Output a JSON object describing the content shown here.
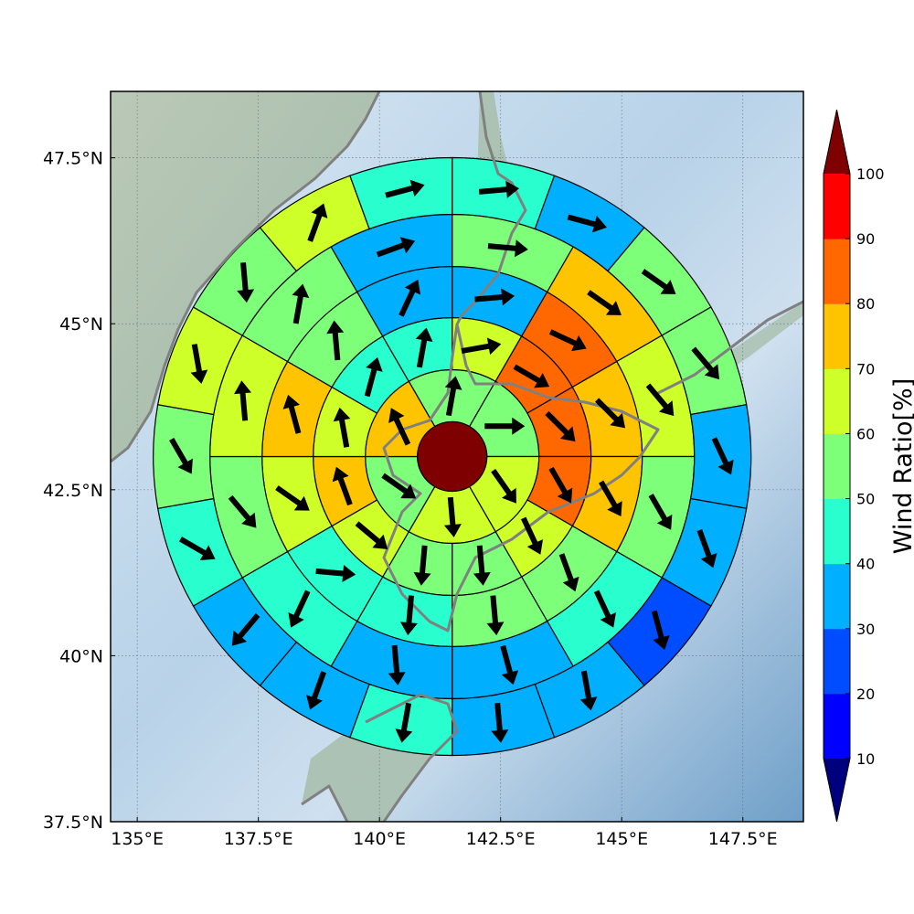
{
  "map": {
    "lon_range": [
      134.45,
      148.75
    ],
    "lat_range": [
      37.5,
      48.5
    ],
    "lon_ticks": [
      {
        "value": 135,
        "label": "135°E"
      },
      {
        "value": 137.5,
        "label": "137.5°E"
      },
      {
        "value": 140,
        "label": "140°E"
      },
      {
        "value": 142.5,
        "label": "142.5°E"
      },
      {
        "value": 145,
        "label": "145°E"
      },
      {
        "value": 147.5,
        "label": "147.5°E"
      }
    ],
    "lat_ticks": [
      {
        "value": 37.5,
        "label": "37.5°N"
      },
      {
        "value": 40,
        "label": "40°N"
      },
      {
        "value": 42.5,
        "label": "42.5°N"
      },
      {
        "value": 45,
        "label": "45°N"
      },
      {
        "value": 47.5,
        "label": "47.5°N"
      }
    ],
    "gridlines": true,
    "basemap": "shaded-relief",
    "coastline_color": "#808080",
    "center": {
      "lon": 141.5,
      "lat": 43.0,
      "value": 100
    }
  },
  "colorbar": {
    "label": "Wind Ratio[%]",
    "ticks": [
      "10",
      "20",
      "30",
      "40",
      "50",
      "60",
      "70",
      "80",
      "90",
      "100"
    ],
    "bins": [
      {
        "min": 0,
        "max": 10,
        "color": "#00007f"
      },
      {
        "min": 10,
        "max": 20,
        "color": "#0000ff"
      },
      {
        "min": 20,
        "max": 30,
        "color": "#004cff"
      },
      {
        "min": 30,
        "max": 40,
        "color": "#00b0ff"
      },
      {
        "min": 40,
        "max": 50,
        "color": "#29ffce"
      },
      {
        "min": 50,
        "max": 60,
        "color": "#7dff7a"
      },
      {
        "min": 60,
        "max": 70,
        "color": "#ceff29"
      },
      {
        "min": 70,
        "max": 80,
        "color": "#ffc400"
      },
      {
        "min": 80,
        "max": 90,
        "color": "#ff6800"
      },
      {
        "min": 90,
        "max": 100,
        "color": "#ff0000"
      },
      {
        "min": 100,
        "max": 110,
        "color": "#7f0000"
      }
    ],
    "extend": "both"
  },
  "chart_data": {
    "type": "heatmap",
    "projection": "polar-sectors",
    "sector_convention": "angle in degrees clockwise from north, sector centered on angle",
    "wind_convention": "direction in degrees clockwise from north the arrow points toward",
    "rings": [
      {
        "ring": 1,
        "sectors": [
          {
            "angle": 0,
            "value": 55,
            "wind_dir": 10
          },
          {
            "angle": 60,
            "value": 55,
            "wind_dir": 90
          },
          {
            "angle": 120,
            "value": 65,
            "wind_dir": 145
          },
          {
            "angle": 180,
            "value": 65,
            "wind_dir": 175
          },
          {
            "angle": 240,
            "value": 55,
            "wind_dir": 125
          },
          {
            "angle": 300,
            "value": 75,
            "wind_dir": 335
          }
        ]
      },
      {
        "ring": 2,
        "sectors": [
          {
            "angle": 15,
            "value": 65,
            "wind_dir": 80
          },
          {
            "angle": 45,
            "value": 85,
            "wind_dir": 120
          },
          {
            "angle": 75,
            "value": 85,
            "wind_dir": 135
          },
          {
            "angle": 105,
            "value": 85,
            "wind_dir": 150
          },
          {
            "angle": 135,
            "value": 65,
            "wind_dir": 155
          },
          {
            "angle": 165,
            "value": 55,
            "wind_dir": 175
          },
          {
            "angle": 195,
            "value": 55,
            "wind_dir": 185
          },
          {
            "angle": 225,
            "value": 65,
            "wind_dir": 130
          },
          {
            "angle": 255,
            "value": 75,
            "wind_dir": 340
          },
          {
            "angle": 285,
            "value": 65,
            "wind_dir": 350
          },
          {
            "angle": 315,
            "value": 45,
            "wind_dir": 15
          },
          {
            "angle": 345,
            "value": 45,
            "wind_dir": 10
          }
        ]
      },
      {
        "ring": 3,
        "sectors": [
          {
            "angle": 15,
            "value": 35,
            "wind_dir": 85
          },
          {
            "angle": 45,
            "value": 85,
            "wind_dir": 115
          },
          {
            "angle": 75,
            "value": 75,
            "wind_dir": 135
          },
          {
            "angle": 105,
            "value": 75,
            "wind_dir": 150
          },
          {
            "angle": 135,
            "value": 55,
            "wind_dir": 160
          },
          {
            "angle": 165,
            "value": 55,
            "wind_dir": 175
          },
          {
            "angle": 195,
            "value": 45,
            "wind_dir": 185
          },
          {
            "angle": 225,
            "value": 45,
            "wind_dir": 95
          },
          {
            "angle": 255,
            "value": 65,
            "wind_dir": 125
          },
          {
            "angle": 285,
            "value": 75,
            "wind_dir": 345
          },
          {
            "angle": 315,
            "value": 55,
            "wind_dir": 355
          },
          {
            "angle": 345,
            "value": 35,
            "wind_dir": 25
          }
        ]
      },
      {
        "ring": 4,
        "sectors": [
          {
            "angle": 15,
            "value": 55,
            "wind_dir": 95
          },
          {
            "angle": 45,
            "value": 75,
            "wind_dir": 125
          },
          {
            "angle": 75,
            "value": 65,
            "wind_dir": 140
          },
          {
            "angle": 105,
            "value": 55,
            "wind_dir": 150
          },
          {
            "angle": 135,
            "value": 45,
            "wind_dir": 155
          },
          {
            "angle": 165,
            "value": 35,
            "wind_dir": 165
          },
          {
            "angle": 195,
            "value": 35,
            "wind_dir": 175
          },
          {
            "angle": 225,
            "value": 45,
            "wind_dir": 205
          },
          {
            "angle": 255,
            "value": 55,
            "wind_dir": 140
          },
          {
            "angle": 285,
            "value": 65,
            "wind_dir": 355
          },
          {
            "angle": 315,
            "value": 55,
            "wind_dir": 10
          },
          {
            "angle": 345,
            "value": 35,
            "wind_dir": 70
          }
        ]
      },
      {
        "ring": 5,
        "sectors": [
          {
            "angle": 10,
            "value": 45,
            "wind_dir": 85
          },
          {
            "angle": 30,
            "value": 35,
            "wind_dir": 105
          },
          {
            "angle": 50,
            "value": 55,
            "wind_dir": 125
          },
          {
            "angle": 70,
            "value": 55,
            "wind_dir": 140
          },
          {
            "angle": 90,
            "value": 35,
            "wind_dir": 155
          },
          {
            "angle": 110,
            "value": 35,
            "wind_dir": 160
          },
          {
            "angle": 130,
            "value": 25,
            "wind_dir": 165
          },
          {
            "angle": 150,
            "value": 35,
            "wind_dir": 170
          },
          {
            "angle": 170,
            "value": 35,
            "wind_dir": 175
          },
          {
            "angle": 190,
            "value": 45,
            "wind_dir": 190
          },
          {
            "angle": 210,
            "value": 35,
            "wind_dir": 200
          },
          {
            "angle": 230,
            "value": 35,
            "wind_dir": 220
          },
          {
            "angle": 250,
            "value": 45,
            "wind_dir": 120
          },
          {
            "angle": 270,
            "value": 55,
            "wind_dir": 150
          },
          {
            "angle": 290,
            "value": 65,
            "wind_dir": 170
          },
          {
            "angle": 310,
            "value": 55,
            "wind_dir": 175
          },
          {
            "angle": 330,
            "value": 65,
            "wind_dir": 20
          },
          {
            "angle": 350,
            "value": 45,
            "wind_dir": 75
          }
        ]
      }
    ]
  }
}
